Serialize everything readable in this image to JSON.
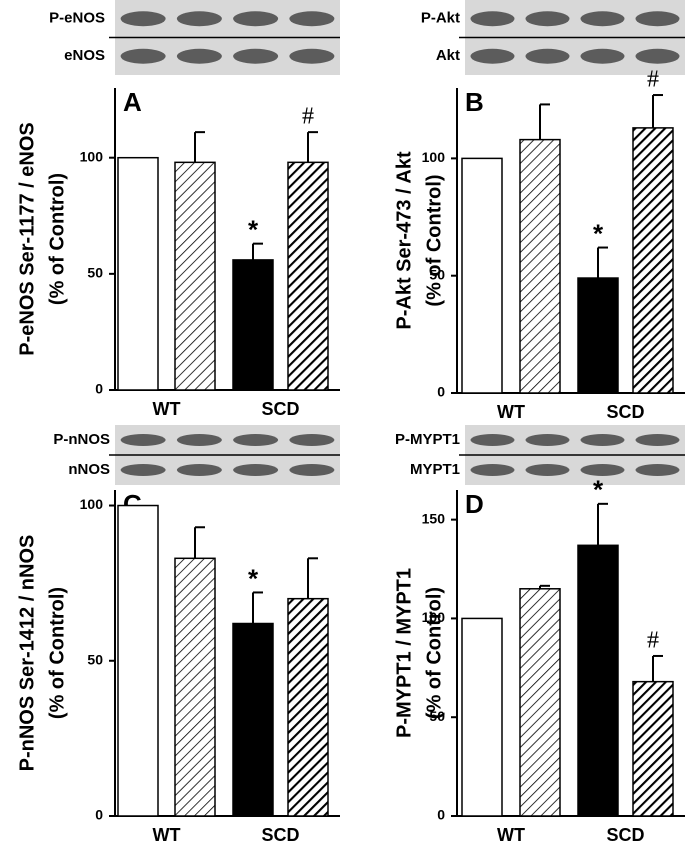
{
  "chart_data": [
    {
      "type": "bar",
      "panel_label": "A",
      "blot_labels": [
        "P-eNOS",
        "eNOS"
      ],
      "ylabel": [
        "P-eNOS Ser-1177 / eNOS",
        "(% of Control)"
      ],
      "groups": [
        "WT",
        "SCD"
      ],
      "values": [
        100,
        98,
        56,
        98
      ],
      "errors": [
        null,
        13,
        7,
        13
      ],
      "annotations": [
        null,
        null,
        "*",
        "#"
      ],
      "fills": [
        "white",
        "hatch-light",
        "black",
        "hatch-dark"
      ],
      "ylim": [
        0,
        130
      ],
      "yticks": [
        0,
        50,
        100
      ]
    },
    {
      "type": "bar",
      "panel_label": "B",
      "blot_labels": [
        "P-Akt",
        "Akt"
      ],
      "ylabel": [
        "P-Akt Ser-473 / Akt",
        "(% of Control)"
      ],
      "groups": [
        "WT",
        "SCD"
      ],
      "values": [
        100,
        108,
        49,
        113
      ],
      "errors": [
        null,
        15,
        13,
        14
      ],
      "annotations": [
        null,
        null,
        "*",
        "#"
      ],
      "fills": [
        "white",
        "hatch-light",
        "black",
        "hatch-dark"
      ],
      "ylim": [
        0,
        130
      ],
      "yticks": [
        0,
        50,
        100
      ]
    },
    {
      "type": "bar",
      "panel_label": "C",
      "blot_labels": [
        "P-nNOS",
        "nNOS"
      ],
      "ylabel": [
        "P-nNOS Ser-1412 / nNOS",
        "(% of Control)"
      ],
      "groups": [
        "WT",
        "SCD"
      ],
      "values": [
        100,
        83,
        62,
        70
      ],
      "errors": [
        null,
        10,
        10,
        13
      ],
      "annotations": [
        null,
        null,
        "*",
        null
      ],
      "fills": [
        "white",
        "hatch-light",
        "black",
        "hatch-dark"
      ],
      "ylim": [
        0,
        105
      ],
      "yticks": [
        0,
        50,
        100
      ]
    },
    {
      "type": "bar",
      "panel_label": "D",
      "blot_labels": [
        "P-MYPT1",
        "MYPT1"
      ],
      "ylabel": [
        "P-MYPT1 / MYPT1",
        "(% of Control)"
      ],
      "groups": [
        "WT",
        "SCD"
      ],
      "values": [
        100,
        115,
        137,
        68
      ],
      "errors": [
        null,
        1.5,
        21,
        13
      ],
      "annotations": [
        null,
        null,
        "*",
        "#"
      ],
      "fills": [
        "white",
        "hatch-light",
        "black",
        "hatch-dark"
      ],
      "ylim": [
        0,
        165
      ],
      "yticks": [
        0,
        50,
        100,
        150
      ]
    }
  ]
}
